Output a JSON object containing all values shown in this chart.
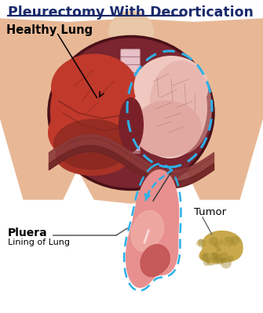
{
  "title": "Pleurectomy With Decortication",
  "title_color": "#1a2a6c",
  "title_fontsize": 12.5,
  "background_color": "#ffffff",
  "label_healthy_lung": "Healthy Lung",
  "label_pluera": "Pluera",
  "label_pluera_sub": "Lining of Lung",
  "label_tumor": "Tumor",
  "skin_color": "#e8b896",
  "skin_shadow": "#d4956a",
  "chest_bg_color": "#7a2530",
  "chest_edge_color": "#4a1018",
  "left_lung_color": "#c0392b",
  "left_lung_mid": "#a93226",
  "left_lung_dark": "#7b241c",
  "right_lung_light": "#f0c8c0",
  "right_lung_color": "#e0a8a0",
  "right_lung_dark": "#c08888",
  "right_lung_shadow": "#b07878",
  "pleura_outline_color": "#2db0e8",
  "spine_color": "#e8c8a8",
  "spine_stripe": "#d4a8c8",
  "pleura_shape_color": "#e89090",
  "pleura_shape_light": "#f0b0a8",
  "pleura_shape_dark": "#c05050",
  "tumor_color": "#c8a84b",
  "tumor_shadow": "#a08830",
  "arrow_line_color": "#555555",
  "blue_arrow_color": "#2db0e8",
  "neck_color": "#e8c8a8",
  "figsize": [
    3.35,
    3.99
  ],
  "dpi": 100
}
